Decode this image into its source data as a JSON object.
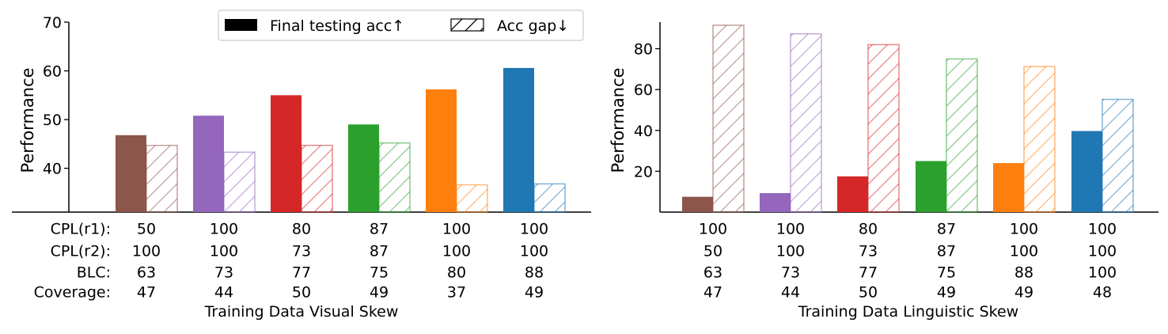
{
  "colors": [
    "#8c564b",
    "#9467bd",
    "#d62728",
    "#2ca02c",
    "#ff7f0e",
    "#1f77b4"
  ],
  "legend": {
    "solid_label": "Final testing acc↑",
    "hatch_label": "Acc gap↓"
  },
  "chart_data": [
    {
      "type": "bar",
      "xlabel": "Training Data Visual Skew",
      "ylabel": "Performance",
      "ylim": [
        31,
        70
      ],
      "yticks": [
        "40",
        "50",
        "60",
        "70"
      ],
      "legend_position": "top-right",
      "grid": false,
      "series": [
        {
          "name": "Final testing acc↑",
          "style": "solid",
          "values": [
            46.8,
            50.8,
            55.0,
            49.0,
            56.2,
            60.6
          ]
        },
        {
          "name": "Acc gap↓",
          "style": "hatched",
          "values": [
            44.7,
            43.3,
            44.7,
            45.2,
            36.6,
            36.8
          ]
        }
      ],
      "row_labels": [
        "CPL(r1):",
        "CPL(r2):",
        "BLC:",
        "Coverage:"
      ],
      "rows": [
        [
          "50",
          "100",
          "80",
          "87",
          "100",
          "100"
        ],
        [
          "100",
          "100",
          "73",
          "87",
          "100",
          "100"
        ],
        [
          "63",
          "73",
          "77",
          "75",
          "80",
          "88"
        ],
        [
          "47",
          "44",
          "50",
          "49",
          "37",
          "49"
        ]
      ]
    },
    {
      "type": "bar",
      "xlabel": "Training Data Linguistic Skew",
      "ylabel": "Performance",
      "ylim": [
        0,
        93
      ],
      "yticks": [
        "20",
        "40",
        "60",
        "80"
      ],
      "grid": false,
      "series": [
        {
          "name": "Final testing acc↑",
          "style": "solid",
          "values": [
            7.5,
            9.3,
            17.5,
            25.0,
            24.0,
            39.7
          ]
        },
        {
          "name": "Acc gap↓",
          "style": "hatched",
          "values": [
            91.5,
            87.3,
            82.0,
            75.0,
            71.3,
            55.2
          ]
        }
      ],
      "row_labels": [],
      "rows": [
        [
          "100",
          "100",
          "80",
          "87",
          "100",
          "100"
        ],
        [
          "50",
          "100",
          "73",
          "87",
          "100",
          "100"
        ],
        [
          "63",
          "73",
          "77",
          "75",
          "88",
          "100"
        ],
        [
          "47",
          "44",
          "50",
          "49",
          "49",
          "48"
        ]
      ]
    }
  ]
}
